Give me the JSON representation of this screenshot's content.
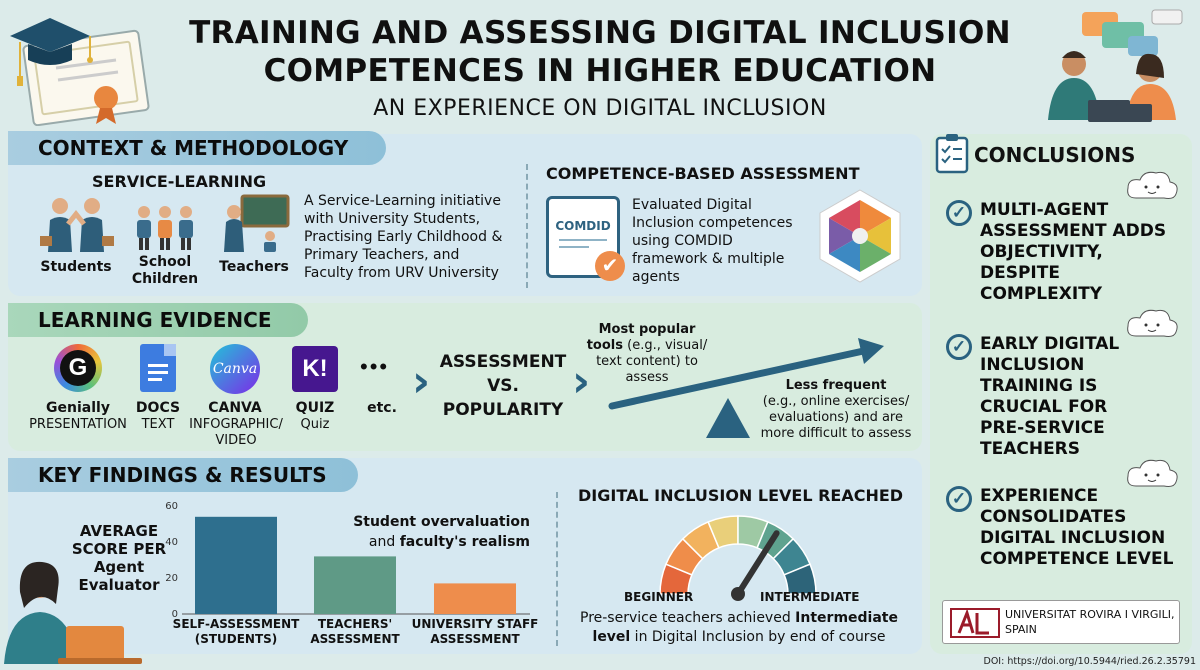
{
  "header": {
    "title_line1": "TRAINING AND ASSESSING DIGITAL INCLUSION",
    "title_line2": "COMPETENCES IN HIGHER EDUCATION",
    "subtitle": "AN EXPERIENCE ON DIGITAL INCLUSION"
  },
  "context": {
    "heading": "CONTEXT & METHODOLOGY",
    "service_learning": {
      "heading": "SERVICE-LEARNING",
      "students": "Students",
      "children_1": "School",
      "children_2": "Children",
      "teachers": "Teachers",
      "description": "A Service-Learning initiative with University Students, Practising Early Childhood & Primary Teachers, and Faculty from URV University"
    },
    "assessment": {
      "heading": "COMPETENCE-BASED ASSESSMENT",
      "badge": "COMDID",
      "description": "Evaluated Digital Inclusion competences using COMDID framework & multiple agents"
    }
  },
  "learning": {
    "heading": "LEARNING EVIDENCE",
    "tools": [
      {
        "name": "Genially",
        "sub": "PRESENTATION"
      },
      {
        "name": "DOCS",
        "sub": "TEXT"
      },
      {
        "name": "CANVA",
        "sub": "INFOGRAPHIC/ VIDEO",
        "icon_text": "Canva"
      },
      {
        "name": "QUIZ",
        "sub": "Quiz",
        "icon_text": "K!"
      }
    ],
    "etc": "etc.",
    "dots": "•••",
    "assessment_1": "ASSESSMENT",
    "assessment_2": "VS.",
    "assessment_3": "POPULARITY",
    "popular_bold": "Most popular tools",
    "popular_rest": " (e.g., visual/ text content) to assess",
    "less_bold": "Less frequent",
    "less_rest": "(e.g., online exercises/ evaluations) and are more difficult to assess"
  },
  "findings": {
    "heading": "KEY FINDINGS & RESULTS",
    "avg_label": "AVERAGE SCORE PER Agent Evaluator",
    "annot_bold": "Student overvaluation",
    "annot_and": "and ",
    "annot_bold2": "faculty's realism",
    "level_heading": "DIGITAL INCLUSION LEVEL REACHED",
    "beginner": "BEGINNER",
    "intermediate": "INTERMEDIATE",
    "level_pre": "Pre-service teachers achieved ",
    "level_bold": "Intermediate level",
    "level_post": " in Digital Inclusion by end of course",
    "gauge_level": 0.68
  },
  "chart_data": {
    "type": "bar",
    "categories": [
      "SELF-ASSESSMENT (STUDENTS)",
      "TEACHERS' ASSESSMENT",
      "UNIVERSITY STAFF ASSESSMENT"
    ],
    "values": [
      54,
      32,
      17
    ],
    "colors": [
      "#2e6f8e",
      "#5f9a86",
      "#ee8d4c"
    ],
    "ylim": [
      0,
      60
    ],
    "yticks": [
      0,
      20,
      40,
      60
    ]
  },
  "conclusions": {
    "heading": "CONCLUSIONS",
    "items": [
      "MULTI-AGENT ASSESSMENT ADDS OBJECTIVITY, DESPITE COMPLEXITY",
      "EARLY DIGITAL INCLUSION TRAINING IS CRUCIAL FOR PRE-SERVICE TEACHERS",
      "EXPERIENCE CONSOLIDATES DIGITAL INCLUSION COMPETENCE LEVEL"
    ],
    "university": "UNIVERSITAT ROVIRA I VIRGILI, SPAIN"
  },
  "doi": "DOI: https://doi.org/10.5944/ried.26.2.35791"
}
